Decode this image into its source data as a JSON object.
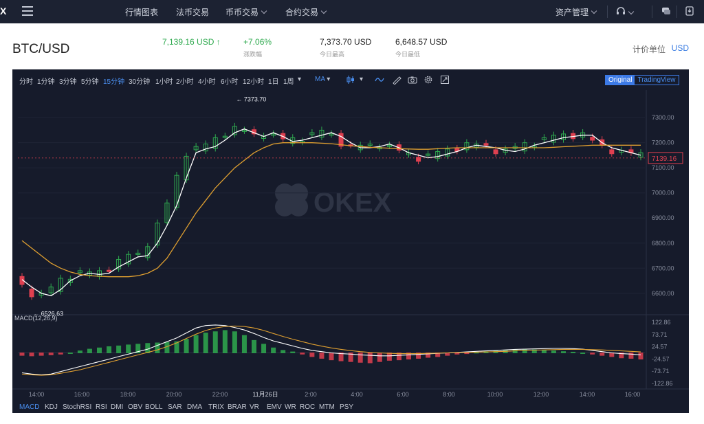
{
  "nav": {
    "logo": "X",
    "items": [
      {
        "label": "行情图表",
        "dropdown": false
      },
      {
        "label": "法币交易",
        "dropdown": false
      },
      {
        "label": "币币交易",
        "dropdown": true
      },
      {
        "label": "合约交易",
        "dropdown": true
      }
    ],
    "asset_menu": "资产管理"
  },
  "ticker": {
    "pair": "BTC/USD",
    "last_price": "7,139.16 USD",
    "change": "+7.06%",
    "change_label": "涨跌幅",
    "high": "7,373.70 USD",
    "high_label": "今日最高",
    "low": "6,648.57 USD",
    "low_label": "今日最低",
    "unit_label": "计价单位",
    "unit_value": "USD"
  },
  "toolbar": {
    "timeframes": [
      "分时",
      "1分钟",
      "3分钟",
      "5分钟",
      "15分钟",
      "30分钟",
      "1小时",
      "2小时",
      "4小时",
      "6小时",
      "12小时",
      "1日",
      "1周"
    ],
    "active_timeframe": "15分钟",
    "indicator_select": "MA",
    "view_original": "Original",
    "view_tradingview": "TradingView"
  },
  "indicators": {
    "tabs": [
      "MACD",
      "KDJ",
      "StochRSI",
      "RSI",
      "DMI",
      "OBV",
      "BOLL",
      "SAR",
      "DMA",
      "TRIX",
      "BRAR",
      "VR",
      "EMV",
      "WR",
      "ROC",
      "MTM",
      "PSY"
    ],
    "active": "MACD",
    "macd_label": "MACD(12,26,9)"
  },
  "watermark": "OKEX",
  "colors": {
    "up": "#2faa4f",
    "down": "#e04050",
    "ma_fast": "#ffffff",
    "ma_slow": "#e0a030",
    "accent": "#3c7ae6",
    "nav_bg": "#1c2232",
    "chart_bg": "#161b2b"
  },
  "chart_data": {
    "type": "line",
    "title": "BTC/USD 15分钟",
    "price_axis": {
      "ticks": [
        6600,
        6700,
        6800,
        6900,
        7000,
        7100,
        7200,
        7300
      ],
      "tick_labels": [
        "6600.00",
        "6700.00",
        "6800.00",
        "6900.00",
        "7000.00",
        "7100.00",
        "7200.00",
        "7300.00"
      ],
      "ylim": [
        6520,
        7410
      ]
    },
    "time_axis": {
      "labels": [
        "14:00",
        "16:00",
        "18:00",
        "20:00",
        "22:00",
        "11月26日",
        "2:00",
        "4:00",
        "6:00",
        "8:00",
        "10:00",
        "12:00",
        "14:00",
        "16:00"
      ]
    },
    "last_price_label": "7139.16",
    "annotations": [
      {
        "text": "7373.70",
        "x": "23:00",
        "y": 7373.7
      },
      {
        "text": "6526.63",
        "x": "14:00",
        "y": 6526.63
      }
    ],
    "series": [
      {
        "name": "MA fast",
        "values": [
          6655,
          6625,
          6600,
          6590,
          6615,
          6650,
          6670,
          6680,
          6675,
          6680,
          6705,
          6725,
          6745,
          6750,
          6800,
          6870,
          6950,
          7060,
          7160,
          7175,
          7185,
          7210,
          7240,
          7255,
          7240,
          7225,
          7240,
          7225,
          7205,
          7210,
          7220,
          7230,
          7240,
          7225,
          7200,
          7180,
          7180,
          7185,
          7195,
          7180,
          7160,
          7150,
          7140,
          7145,
          7155,
          7165,
          7180,
          7190,
          7185,
          7180,
          7170,
          7165,
          7175,
          7190,
          7200,
          7210,
          7220,
          7225,
          7230,
          7230,
          7200,
          7180,
          7170,
          7160,
          7150
        ]
      },
      {
        "name": "MA slow",
        "values": [
          6810,
          6780,
          6750,
          6720,
          6700,
          6685,
          6675,
          6670,
          6668,
          6666,
          6666,
          6666,
          6670,
          6680,
          6700,
          6740,
          6800,
          6860,
          6920,
          6970,
          7020,
          7060,
          7100,
          7130,
          7160,
          7180,
          7195,
          7200,
          7200,
          7200,
          7200,
          7198,
          7196,
          7192,
          7188,
          7185,
          7182,
          7180,
          7178,
          7176,
          7175,
          7174,
          7174,
          7176,
          7178,
          7180,
          7180,
          7180,
          7180,
          7180,
          7180,
          7180,
          7180,
          7180,
          7180,
          7182,
          7184,
          7186,
          7188,
          7190,
          7190,
          7190,
          7190,
          7190,
          7190
        ]
      }
    ],
    "macd": {
      "axis_ticks": [
        122.86,
        73.71,
        24.57,
        -24.57,
        -73.71,
        -122.86
      ],
      "tick_labels": [
        "122.86",
        "73.71",
        "24.57",
        "-24.57",
        "-73.71",
        "-122.86"
      ],
      "histogram": [
        -10,
        -12,
        -10,
        -8,
        -5,
        0,
        8,
        15,
        20,
        25,
        28,
        32,
        35,
        38,
        40,
        42,
        45,
        55,
        70,
        80,
        85,
        90,
        85,
        70,
        50,
        35,
        20,
        10,
        4,
        -5,
        -15,
        -22,
        -28,
        -32,
        -35,
        -38,
        -40,
        -35,
        -30,
        -28,
        -25,
        -22,
        -18,
        -15,
        -10,
        -5,
        -3,
        2,
        5,
        8,
        10,
        12,
        14,
        12,
        10,
        8,
        5,
        3,
        0,
        -5,
        -10,
        -15,
        -20,
        -22,
        -25
      ],
      "dif": [
        -80,
        -85,
        -88,
        -85,
        -75,
        -65,
        -55,
        -45,
        -35,
        -25,
        -15,
        -5,
        5,
        15,
        30,
        45,
        60,
        80,
        100,
        110,
        112,
        110,
        102,
        92,
        78,
        62,
        48,
        38,
        28,
        18,
        10,
        5,
        0,
        -3,
        -5,
        -8,
        -10,
        -12,
        -12,
        -10,
        -8,
        -6,
        -4,
        -2,
        0,
        2,
        4,
        6,
        8,
        10,
        12,
        14,
        15,
        16,
        17,
        18,
        18,
        17,
        15,
        10,
        5,
        0,
        -3,
        -5,
        -8
      ],
      "dea": [
        -85,
        -88,
        -90,
        -88,
        -82,
        -75,
        -68,
        -58,
        -48,
        -38,
        -28,
        -18,
        -8,
        2,
        12,
        25,
        40,
        58,
        75,
        90,
        100,
        106,
        108,
        106,
        100,
        90,
        78,
        66,
        55,
        45,
        35,
        27,
        20,
        14,
        9,
        5,
        2,
        0,
        -2,
        -3,
        -3,
        -3,
        -2,
        -1,
        0,
        1,
        2,
        3,
        4,
        5,
        6,
        8,
        10,
        11,
        12,
        13,
        14,
        14,
        14,
        13,
        12,
        10,
        8,
        6,
        4
      ]
    }
  }
}
